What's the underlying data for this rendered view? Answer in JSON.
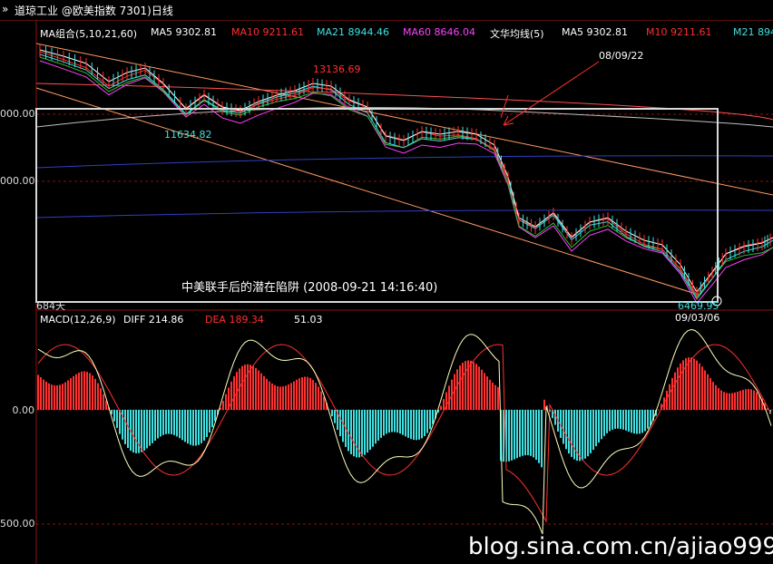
{
  "titlebar": {
    "arrow_icon": "double-chevron-icon",
    "title": "道琼工业 @欧美指数  7301)日线"
  },
  "ma_panel": {
    "group_label": "MA组合(5,10,21,60)",
    "ma5": "MA5  9302.81",
    "ma10": "MA10  9211.61",
    "ma21": "MA21  8944.46",
    "ma60": "MA60  8646.04",
    "wh_label": "文华均线(5)",
    "wh_ma5": "MA5   9302.81",
    "wh_m10": "M10   9211.61",
    "wh_m21": "M21   8944.46"
  },
  "macd_panel": {
    "label": "MACD(12,26,9)",
    "diff": "DIFF  214.86",
    "dea": "DEA  189.34",
    "macd": "51.03"
  },
  "axis": {
    "y_top_1": "000.00",
    "y_top_2": "000.00",
    "y_macd_zero": "0.00",
    "y_macd_low": "500.00",
    "x_partial": "684天"
  },
  "annotations": {
    "high": "13136.69",
    "low1": "11634.82",
    "low2": "6469.95",
    "date_arrow": "08/09/22",
    "date_low": "09/03/06",
    "caption": "中美联手后的潜在陷阱   (2008-09-21 14:16:40)"
  },
  "watermark": "blog.sina.com.cn/ajiao9999",
  "colors": {
    "ma5": "#ffffff",
    "ma10": "#ff3030",
    "ma21": "#40e0e0",
    "ma60": "#ff40ff",
    "up": "#ff3030",
    "down": "#40e0e0",
    "box": "#d8d8d8"
  }
}
